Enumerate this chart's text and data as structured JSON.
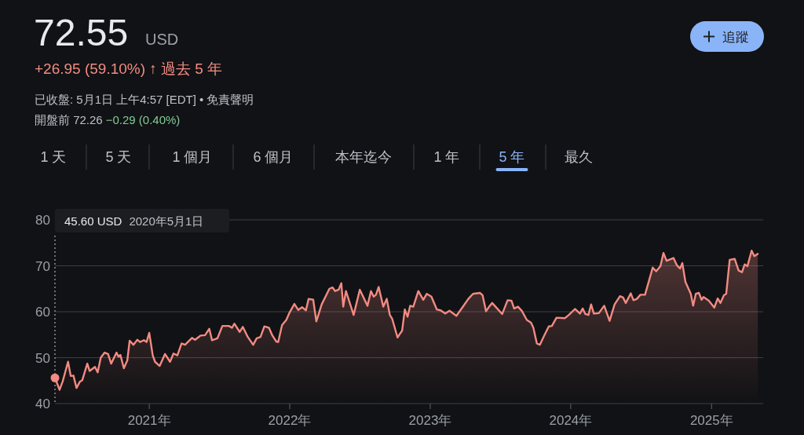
{
  "chart_data": {
    "type": "area",
    "title": "72.55",
    "subtitle": "+26.95 (59.10%) ↑ 過去 5 年",
    "annotations": [
      "USD",
      "已收盤: 5月1日 上午4:57 [EDT] • 免責聲明",
      "開盤前 72.26",
      "−0.29 (0.40%)",
      "1 天",
      "5 天",
      "1 個月",
      "6 個月",
      "本年迄今",
      "1 年",
      "5 年",
      "最久",
      "追蹤",
      "45.60 USD",
      "2020年5月1日"
    ],
    "xlim": [
      "2020-05-01",
      "2025-05-15"
    ],
    "xticks": [
      {
        "value": "2021-01-01",
        "label": "2021年"
      },
      {
        "value": "2022-01-01",
        "label": "2022年"
      },
      {
        "value": "2023-01-01",
        "label": "2023年"
      },
      {
        "value": "2024-01-01",
        "label": "2024年"
      },
      {
        "value": "2025-01-01",
        "label": "2025年"
      }
    ],
    "ylim": [
      40,
      80
    ],
    "yticks": [
      40,
      50,
      60,
      70,
      80
    ],
    "grid": "y",
    "ref_lines": [
      {
        "axis": "x",
        "value": "2020-05-01",
        "color": "#9aa0a6",
        "line_style": "dotted"
      }
    ],
    "series": [
      {
        "color": "#f28b82",
        "x": [
          "2020-05-01",
          "2020-05-13",
          "2020-05-21",
          "2020-06-04",
          "2020-06-11",
          "2020-06-18",
          "2020-06-26",
          "2020-07-05",
          "2020-07-11",
          "2020-07-24",
          "2020-07-30",
          "2020-08-13",
          "2020-08-20",
          "2020-08-28",
          "2020-09-07",
          "2020-09-16",
          "2020-09-24",
          "2020-10-08",
          "2020-10-13",
          "2020-10-18",
          "2020-10-27",
          "2020-11-05",
          "2020-11-11",
          "2020-11-21",
          "2020-12-01",
          "2020-12-08",
          "2020-12-18",
          "2020-12-25",
          "2021-01-01",
          "2021-01-10",
          "2021-01-16",
          "2021-01-28",
          "2021-02-11",
          "2021-02-24",
          "2021-03-05",
          "2021-03-15",
          "2021-03-26",
          "2021-04-04",
          "2021-04-22",
          "2021-04-30",
          "2021-05-14",
          "2021-05-26",
          "2021-06-06",
          "2021-06-13",
          "2021-06-27",
          "2021-07-10",
          "2021-07-27",
          "2021-08-04",
          "2021-08-10",
          "2021-08-24",
          "2021-09-01",
          "2021-09-14",
          "2021-09-28",
          "2021-10-07",
          "2021-10-17",
          "2021-10-27",
          "2021-11-08",
          "2021-11-17",
          "2021-11-27",
          "2021-12-02",
          "2021-12-12",
          "2021-12-23",
          "2022-01-01",
          "2022-01-13",
          "2022-01-23",
          "2022-02-02",
          "2022-02-12",
          "2022-02-19",
          "2022-03-03",
          "2022-03-11",
          "2022-03-25",
          "2022-04-14",
          "2022-04-22",
          "2022-04-29",
          "2022-05-08",
          "2022-05-15",
          "2022-05-20",
          "2022-05-27",
          "2022-06-16",
          "2022-07-02",
          "2022-07-22",
          "2022-07-31",
          "2022-08-07",
          "2022-08-13",
          "2022-08-20",
          "2022-09-01",
          "2022-09-10",
          "2022-09-18",
          "2022-09-24",
          "2022-10-08",
          "2022-10-20",
          "2022-10-27",
          "2022-11-03",
          "2022-11-10",
          "2022-11-18",
          "2022-12-01",
          "2022-12-14",
          "2022-12-23",
          "2023-01-04",
          "2023-01-18",
          "2023-01-28",
          "2023-02-09",
          "2023-02-20",
          "2023-03-10",
          "2023-03-27",
          "2023-04-10",
          "2023-04-22",
          "2023-05-10",
          "2023-05-17",
          "2023-05-26",
          "2023-06-03",
          "2023-06-11",
          "2023-06-23",
          "2023-07-07",
          "2023-07-21",
          "2023-07-31",
          "2023-08-07",
          "2023-08-17",
          "2023-08-27",
          "2023-09-09",
          "2023-09-20",
          "2023-09-26",
          "2023-10-05",
          "2023-10-13",
          "2023-10-24",
          "2023-11-05",
          "2023-11-13",
          "2023-11-25",
          "2023-12-17",
          "2023-12-27",
          "2024-01-12",
          "2024-01-25",
          "2024-02-01",
          "2024-02-08",
          "2024-02-16",
          "2024-02-23",
          "2024-03-01",
          "2024-03-14",
          "2024-03-28",
          "2024-04-11",
          "2024-04-24",
          "2024-05-08",
          "2024-05-16",
          "2024-05-23",
          "2024-06-05",
          "2024-06-12",
          "2024-06-21",
          "2024-06-30",
          "2024-07-12",
          "2024-08-01",
          "2024-08-10",
          "2024-08-21",
          "2024-08-29",
          "2024-09-06",
          "2024-09-24",
          "2024-10-03",
          "2024-10-11",
          "2024-10-17",
          "2024-10-25",
          "2024-11-08",
          "2024-11-14",
          "2024-11-21",
          "2024-11-29",
          "2024-12-06",
          "2024-12-11",
          "2024-12-25",
          "2025-01-08",
          "2025-01-17",
          "2025-01-24",
          "2025-02-02",
          "2025-02-08",
          "2025-02-17",
          "2025-03-02",
          "2025-03-12",
          "2025-03-21",
          "2025-03-28",
          "2025-04-04",
          "2025-04-15",
          "2025-04-22",
          "2025-05-01"
        ],
        "values": [
          45.6,
          43.0,
          44.8,
          49.1,
          46.0,
          46.1,
          43.4,
          44.8,
          45.1,
          48.7,
          47.1,
          48.0,
          46.8,
          50.0,
          51.1,
          50.8,
          48.7,
          51.1,
          50.2,
          50.6,
          47.7,
          49.4,
          53.7,
          52.8,
          53.9,
          53.4,
          53.8,
          53.4,
          55.4,
          50.5,
          49.1,
          48.2,
          50.8,
          49.1,
          50.9,
          50.5,
          53.1,
          52.8,
          54.3,
          53.9,
          54.8,
          54.9,
          56.3,
          53.8,
          54.2,
          56.9,
          56.9,
          56.5,
          57.4,
          55.6,
          56.7,
          54.5,
          52.8,
          54.2,
          54.5,
          56.8,
          56.5,
          54.8,
          53.5,
          53.4,
          57.1,
          58.2,
          59.9,
          61.7,
          60.4,
          61.0,
          60.3,
          62.8,
          62.6,
          57.9,
          61.6,
          65.0,
          65.3,
          64.5,
          64.8,
          66.2,
          61.1,
          64.5,
          59.3,
          64.8,
          61.3,
          64.5,
          63.3,
          63.7,
          65.4,
          61.1,
          62.8,
          59.3,
          58.5,
          54.4,
          55.9,
          60.5,
          58.9,
          61.3,
          61.1,
          64.5,
          62.6,
          63.9,
          63.3,
          60.5,
          60.3,
          59.6,
          60.2,
          59.1,
          61.1,
          62.8,
          63.9,
          64.1,
          63.6,
          60.1,
          61.1,
          61.9,
          60.8,
          59.5,
          62.5,
          62.4,
          60.7,
          61.1,
          60.2,
          58.2,
          57.6,
          56.5,
          53.1,
          52.8,
          54.8,
          56.8,
          56.9,
          58.7,
          58.6,
          59.3,
          60.6,
          59.6,
          60.7,
          59.5,
          59.3,
          61.6,
          59.6,
          59.7,
          61.3,
          58.0,
          61.6,
          63.4,
          63.1,
          61.9,
          64.0,
          62.5,
          62.8,
          63.7,
          63.7,
          69.6,
          68.8,
          69.9,
          72.8,
          71.1,
          71.7,
          70.1,
          69.4,
          70.6,
          66.5,
          63.9,
          61.3,
          63.9,
          64.1,
          62.6,
          63.2,
          62.4,
          60.9,
          62.9,
          61.9,
          63.6,
          63.9,
          71.3,
          71.5,
          69.0,
          68.6,
          70.3,
          69.9,
          73.3,
          72.1,
          72.6
        ]
      }
    ]
  }
}
